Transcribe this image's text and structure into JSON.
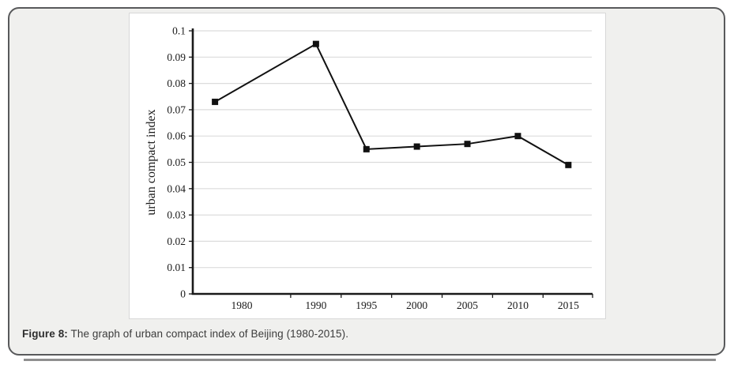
{
  "caption": {
    "label": "Figure 8:",
    "text": "The graph of urban compact index of Beijing (1980-2015)."
  },
  "colors": {
    "card_bg": "#f0f0ee",
    "card_border": "#58595b",
    "panel_bg": "#ffffff",
    "panel_border": "#d8d8d8",
    "grid": "#dcdcdc",
    "axis": "#1a1a1a",
    "series": "#111111",
    "tick_text": "#1a1a1a",
    "caption_text": "#3b3b3b",
    "divider": "#8f8f8f"
  },
  "chart_data": {
    "type": "line",
    "title": "",
    "xlabel": "",
    "ylabel": "urban compact index",
    "x": [
      1980,
      1990,
      1995,
      2000,
      2005,
      2010,
      2015
    ],
    "series": [
      {
        "name": "urban compact index",
        "marker": "square",
        "color": "#111111",
        "values": [
          0.073,
          0.095,
          0.055,
          0.056,
          0.057,
          0.06,
          0.049
        ]
      }
    ],
    "x_tick_labels": [
      "1980",
      "1990",
      "1995",
      "2000",
      "2005",
      "2010",
      "2015"
    ],
    "y_tick_labels": [
      "0",
      "0.01",
      "0.02",
      "0.03",
      "0.04",
      "0.05",
      "0.06",
      "0.07",
      "0.08",
      "0.09",
      "0.1"
    ],
    "ylim": [
      0,
      0.1
    ],
    "y_tick_step": 0.01,
    "x_range_years": [
      1977.8,
      2017.4
    ],
    "grid": "horizontal",
    "legend": "none"
  }
}
